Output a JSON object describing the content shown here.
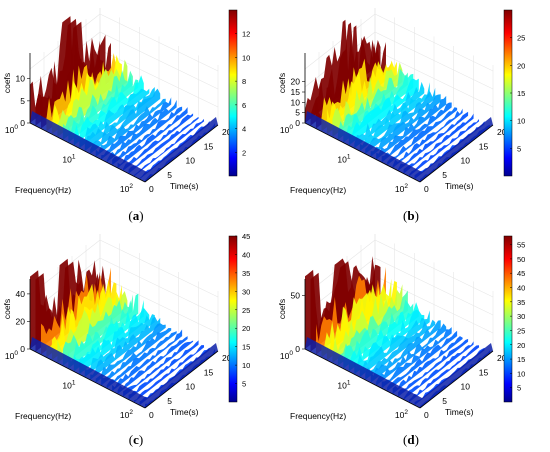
{
  "chart_data": [
    {
      "type": "surface3d",
      "panel": "a",
      "zlabel": "coefs",
      "xlabel": "Frequency(Hz)",
      "ylabel": "Time(s)",
      "z_ticks": [
        "0",
        "5",
        "10"
      ],
      "freq_ticks": [
        {
          "base": "10",
          "exp": "0"
        },
        {
          "base": "10",
          "exp": "1"
        },
        {
          "base": "10",
          "exp": "2"
        }
      ],
      "time_ticks": [
        "0",
        "5",
        "10",
        "15",
        "20"
      ],
      "colorbar": {
        "min": 0,
        "max": 14,
        "ticks": [
          "2",
          "4",
          "6",
          "8",
          "10",
          "12"
        ],
        "tick_values": [
          2,
          4,
          6,
          8,
          10,
          12
        ]
      },
      "zlim": [
        0,
        14
      ],
      "peak": 13.5
    },
    {
      "type": "surface3d",
      "panel": "b",
      "zlabel": "coefs",
      "xlabel": "Frequency(Hz)",
      "ylabel": "Time(s)",
      "z_ticks": [
        "0",
        "5",
        "10",
        "15",
        "20"
      ],
      "freq_ticks": [
        {
          "base": "10",
          "exp": "0"
        },
        {
          "base": "10",
          "exp": "1"
        },
        {
          "base": "10",
          "exp": "2"
        }
      ],
      "time_ticks": [
        "0",
        "5",
        "10",
        "15",
        "20"
      ],
      "colorbar": {
        "min": 0,
        "max": 30,
        "ticks": [
          "5",
          "10",
          "15",
          "20",
          "25"
        ],
        "tick_values": [
          5,
          10,
          15,
          20,
          25
        ]
      },
      "zlim": [
        0,
        30
      ],
      "peak": 29
    },
    {
      "type": "surface3d",
      "panel": "c",
      "zlabel": "coefs",
      "xlabel": "Frequency(Hz)",
      "ylabel": "Time(s)",
      "z_ticks": [
        "0",
        "20",
        "40"
      ],
      "freq_ticks": [
        {
          "base": "10",
          "exp": "0"
        },
        {
          "base": "10",
          "exp": "1"
        },
        {
          "base": "10",
          "exp": "2"
        }
      ],
      "time_ticks": [
        "0",
        "5",
        "10",
        "15",
        "20"
      ],
      "colorbar": {
        "min": 0,
        "max": 45,
        "ticks": [
          "5",
          "10",
          "15",
          "20",
          "25",
          "30",
          "35",
          "40",
          "45"
        ],
        "tick_values": [
          5,
          10,
          15,
          20,
          25,
          30,
          35,
          40,
          45
        ]
      },
      "zlim": [
        0,
        45
      ],
      "peak": 44
    },
    {
      "type": "surface3d",
      "panel": "d",
      "zlabel": "coefs",
      "xlabel": "Frequency(Hz)",
      "ylabel": "Time(s)",
      "z_ticks": [
        "0",
        "50"
      ],
      "freq_ticks": [
        {
          "base": "10",
          "exp": "0"
        },
        {
          "base": "10",
          "exp": "1"
        },
        {
          "base": "10",
          "exp": "2"
        }
      ],
      "time_ticks": [
        "0",
        "5",
        "10",
        "15",
        "20"
      ],
      "colorbar": {
        "min": 0,
        "max": 58,
        "ticks": [
          "5",
          "10",
          "15",
          "20",
          "25",
          "30",
          "35",
          "40",
          "45",
          "50",
          "55"
        ],
        "tick_values": [
          5,
          10,
          15,
          20,
          25,
          30,
          35,
          40,
          45,
          50,
          55
        ]
      },
      "zlim": [
        0,
        58
      ],
      "peak": 57
    }
  ],
  "captions": [
    {
      "open": "(",
      "letter": "a",
      "close": ")"
    },
    {
      "open": "(",
      "letter": "b",
      "close": ")"
    },
    {
      "open": "(",
      "letter": "c",
      "close": ")"
    },
    {
      "open": "(",
      "letter": "d",
      "close": ")"
    }
  ],
  "colors": {
    "colormap": "jet",
    "ridge": "#f0c820"
  }
}
